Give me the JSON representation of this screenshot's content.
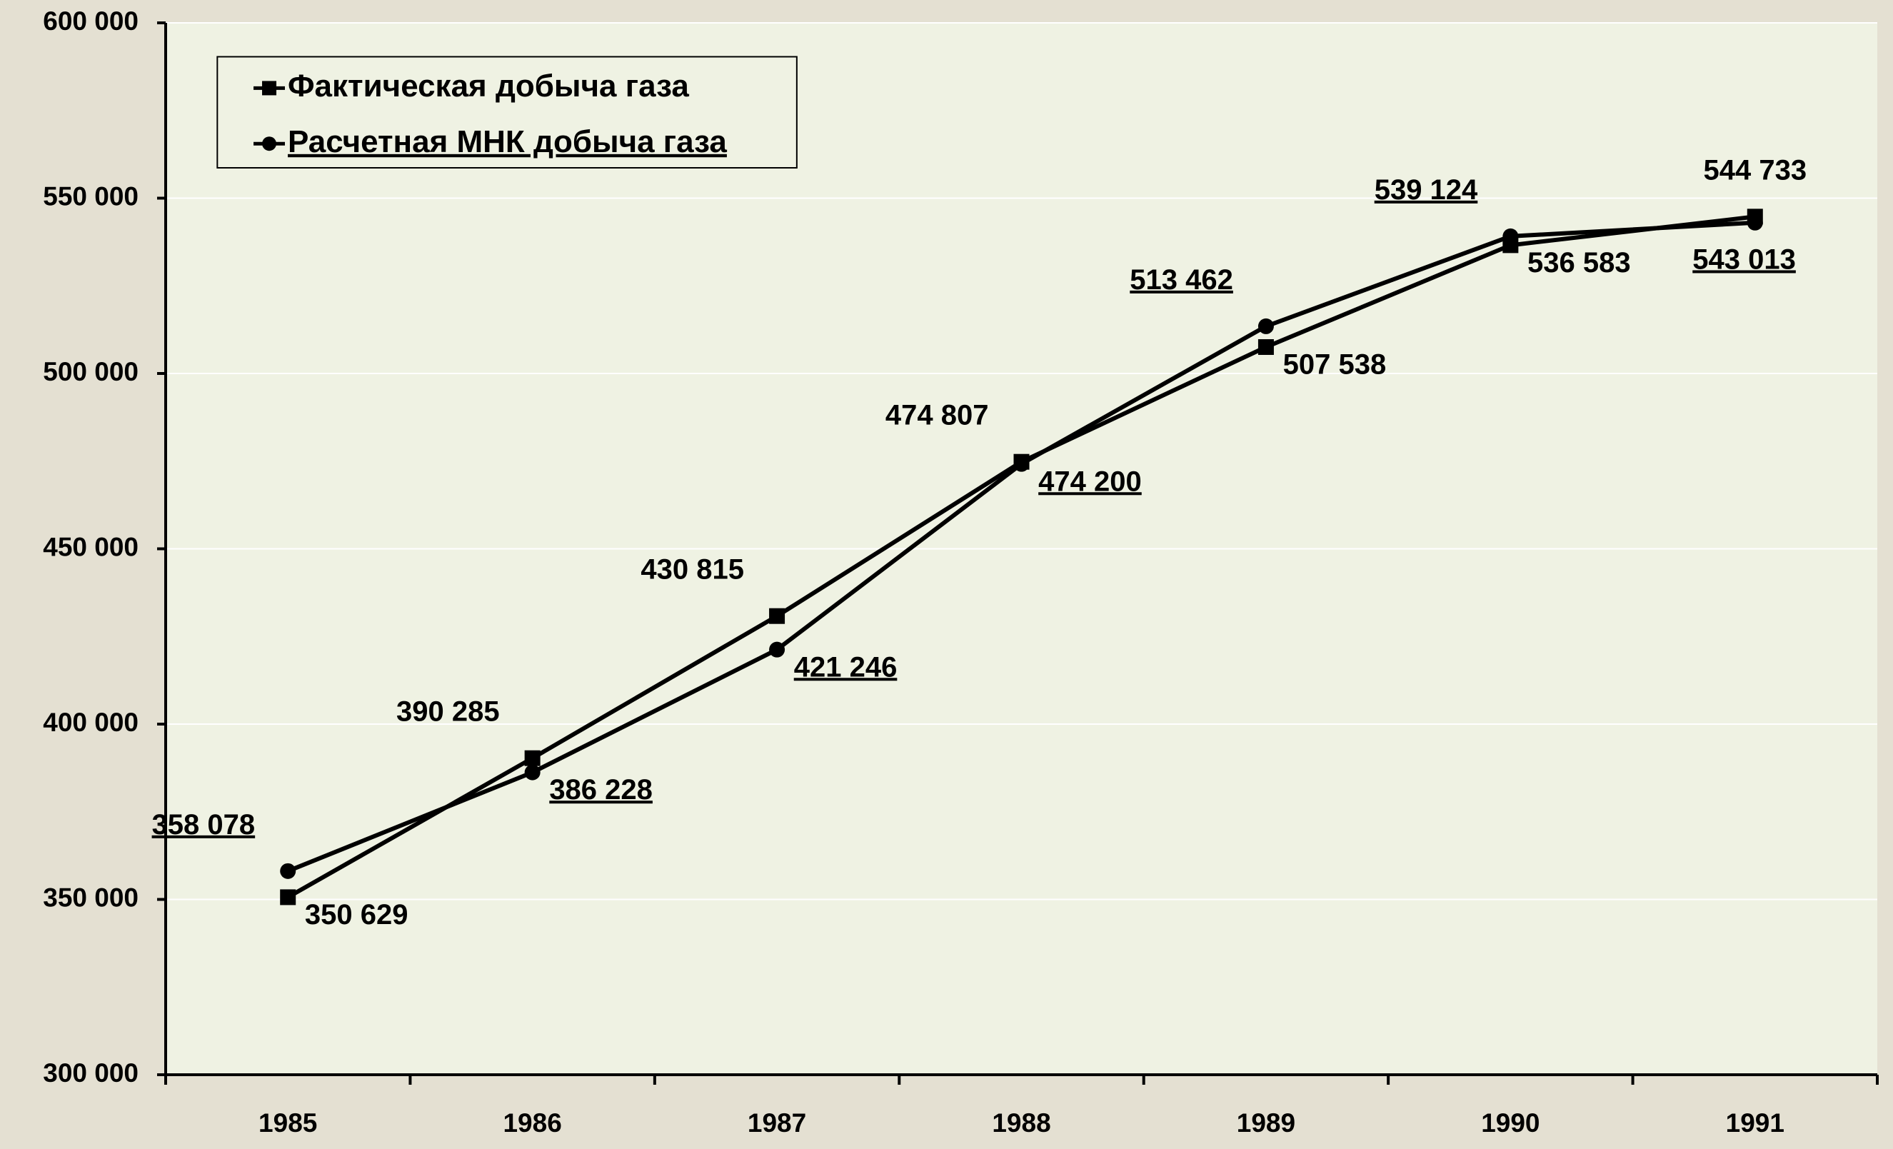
{
  "chart_data": {
    "type": "line",
    "categories": [
      "1985",
      "1986",
      "1987",
      "1988",
      "1989",
      "1990",
      "1991"
    ],
    "series": [
      {
        "name": "Фактическая добыча газа",
        "color": "#000000",
        "marker": "square",
        "values": [
          350629,
          390285,
          430815,
          474807,
          507538,
          536583,
          544733
        ],
        "value_labels": [
          "350 629",
          "390 285",
          "430 815",
          "474 807",
          "507 538",
          "536 583",
          "544 733"
        ]
      },
      {
        "name": "Расчетная МНК добыча газа",
        "color": "#000000",
        "marker": "circle",
        "values": [
          358078,
          386228,
          421246,
          474200,
          513462,
          539124,
          543013
        ],
        "value_labels": [
          "358 078",
          "386 228",
          "421 246",
          "474 200",
          "513 462",
          "539 124",
          "543 013"
        ]
      }
    ],
    "ylim": [
      300000,
      600000
    ],
    "yticks": [
      {
        "value": 300000,
        "label": "300 000"
      },
      {
        "value": 350000,
        "label": "350 000"
      },
      {
        "value": 400000,
        "label": "400 000"
      },
      {
        "value": 450000,
        "label": "450 000"
      },
      {
        "value": 500000,
        "label": "500 000"
      },
      {
        "value": 550000,
        "label": "550 000"
      },
      {
        "value": 600000,
        "label": "600 000"
      }
    ],
    "grid": true,
    "legend": "upper left"
  }
}
